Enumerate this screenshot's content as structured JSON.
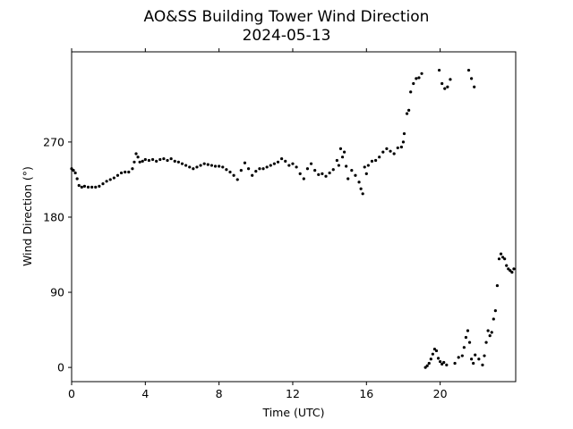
{
  "chart_data": {
    "type": "scatter",
    "title": "AO&SS Building Tower Wind Direction",
    "subtitle": "2024-05-13",
    "xlabel": "Time (UTC)",
    "ylabel": "Wind Direction (°)",
    "xlim": [
      0,
      24.1
    ],
    "ylim": [
      -17,
      378
    ],
    "xticks": [
      0,
      4,
      8,
      12,
      16,
      20
    ],
    "yticks": [
      0,
      90,
      180,
      270
    ],
    "grid": false,
    "legend": "none",
    "marker_color": "#000000",
    "series": [
      {
        "points": [
          [
            0.0,
            238
          ],
          [
            0.1,
            236
          ],
          [
            0.2,
            233
          ],
          [
            0.3,
            226
          ],
          [
            0.4,
            218
          ],
          [
            0.55,
            216
          ],
          [
            0.7,
            217
          ],
          [
            0.9,
            216
          ],
          [
            1.1,
            216
          ],
          [
            1.3,
            216
          ],
          [
            1.5,
            217
          ],
          [
            1.7,
            220
          ],
          [
            1.9,
            223
          ],
          [
            2.1,
            225
          ],
          [
            2.3,
            227
          ],
          [
            2.5,
            230
          ],
          [
            2.7,
            233
          ],
          [
            2.9,
            234
          ],
          [
            3.1,
            234
          ],
          [
            3.3,
            238
          ],
          [
            3.4,
            246
          ],
          [
            3.5,
            256
          ],
          [
            3.6,
            252
          ],
          [
            3.7,
            246
          ],
          [
            3.85,
            247
          ],
          [
            4.0,
            249
          ],
          [
            4.2,
            248
          ],
          [
            4.4,
            249
          ],
          [
            4.6,
            247
          ],
          [
            4.8,
            249
          ],
          [
            5.0,
            250
          ],
          [
            5.2,
            248
          ],
          [
            5.4,
            250
          ],
          [
            5.6,
            247
          ],
          [
            5.8,
            246
          ],
          [
            6.0,
            244
          ],
          [
            6.2,
            242
          ],
          [
            6.4,
            240
          ],
          [
            6.6,
            238
          ],
          [
            6.8,
            240
          ],
          [
            7.0,
            242
          ],
          [
            7.2,
            244
          ],
          [
            7.4,
            243
          ],
          [
            7.6,
            242
          ],
          [
            7.8,
            241
          ],
          [
            8.0,
            241
          ],
          [
            8.2,
            240
          ],
          [
            8.4,
            237
          ],
          [
            8.6,
            234
          ],
          [
            8.8,
            230
          ],
          [
            9.0,
            225
          ],
          [
            9.2,
            236
          ],
          [
            9.4,
            245
          ],
          [
            9.6,
            238
          ],
          [
            9.8,
            230
          ],
          [
            10.0,
            235
          ],
          [
            10.2,
            238
          ],
          [
            10.4,
            238
          ],
          [
            10.6,
            240
          ],
          [
            10.8,
            242
          ],
          [
            11.0,
            244
          ],
          [
            11.2,
            246
          ],
          [
            11.4,
            250
          ],
          [
            11.6,
            247
          ],
          [
            11.8,
            242
          ],
          [
            12.0,
            244
          ],
          [
            12.2,
            240
          ],
          [
            12.4,
            232
          ],
          [
            12.6,
            226
          ],
          [
            12.8,
            238
          ],
          [
            13.0,
            244
          ],
          [
            13.2,
            236
          ],
          [
            13.4,
            231
          ],
          [
            13.6,
            232
          ],
          [
            13.8,
            229
          ],
          [
            14.0,
            233
          ],
          [
            14.2,
            237
          ],
          [
            14.4,
            248
          ],
          [
            14.5,
            242
          ],
          [
            14.6,
            262
          ],
          [
            14.7,
            252
          ],
          [
            14.8,
            258
          ],
          [
            14.9,
            241
          ],
          [
            15.0,
            226
          ],
          [
            15.2,
            236
          ],
          [
            15.4,
            230
          ],
          [
            15.6,
            222
          ],
          [
            15.7,
            214
          ],
          [
            15.8,
            208
          ],
          [
            15.9,
            240
          ],
          [
            16.0,
            232
          ],
          [
            16.1,
            242
          ],
          [
            16.3,
            247
          ],
          [
            16.5,
            248
          ],
          [
            16.7,
            252
          ],
          [
            16.9,
            258
          ],
          [
            17.1,
            262
          ],
          [
            17.3,
            259
          ],
          [
            17.5,
            256
          ],
          [
            17.7,
            263
          ],
          [
            17.9,
            264
          ],
          [
            18.0,
            270
          ],
          [
            18.05,
            280
          ],
          [
            18.2,
            304
          ],
          [
            18.3,
            308
          ],
          [
            18.4,
            330
          ],
          [
            18.55,
            340
          ],
          [
            18.7,
            346
          ],
          [
            18.85,
            347
          ],
          [
            19.0,
            352
          ],
          [
            19.2,
            0
          ],
          [
            19.3,
            2
          ],
          [
            19.4,
            5
          ],
          [
            19.5,
            10
          ],
          [
            19.6,
            16
          ],
          [
            19.7,
            22
          ],
          [
            19.8,
            20
          ],
          [
            19.9,
            11
          ],
          [
            20.0,
            7
          ],
          [
            20.1,
            4
          ],
          [
            20.2,
            6
          ],
          [
            20.35,
            3
          ],
          [
            19.95,
            356
          ],
          [
            20.1,
            340
          ],
          [
            20.25,
            334
          ],
          [
            20.4,
            336
          ],
          [
            20.55,
            345
          ],
          [
            20.8,
            5
          ],
          [
            21.0,
            12
          ],
          [
            21.2,
            14
          ],
          [
            21.3,
            24
          ],
          [
            21.4,
            36
          ],
          [
            21.5,
            44
          ],
          [
            21.6,
            30
          ],
          [
            21.7,
            10
          ],
          [
            21.8,
            5
          ],
          [
            21.9,
            15
          ],
          [
            21.55,
            356
          ],
          [
            21.7,
            346
          ],
          [
            21.85,
            336
          ],
          [
            22.1,
            10
          ],
          [
            22.3,
            3
          ],
          [
            22.4,
            14
          ],
          [
            22.5,
            30
          ],
          [
            22.6,
            44
          ],
          [
            22.7,
            38
          ],
          [
            22.8,
            42
          ],
          [
            22.9,
            58
          ],
          [
            23.0,
            68
          ],
          [
            23.1,
            98
          ],
          [
            23.2,
            130
          ],
          [
            23.3,
            136
          ],
          [
            23.4,
            132
          ],
          [
            23.5,
            130
          ],
          [
            23.6,
            122
          ],
          [
            23.7,
            118
          ],
          [
            23.8,
            116
          ],
          [
            23.9,
            114
          ],
          [
            24.0,
            118
          ]
        ]
      }
    ]
  }
}
